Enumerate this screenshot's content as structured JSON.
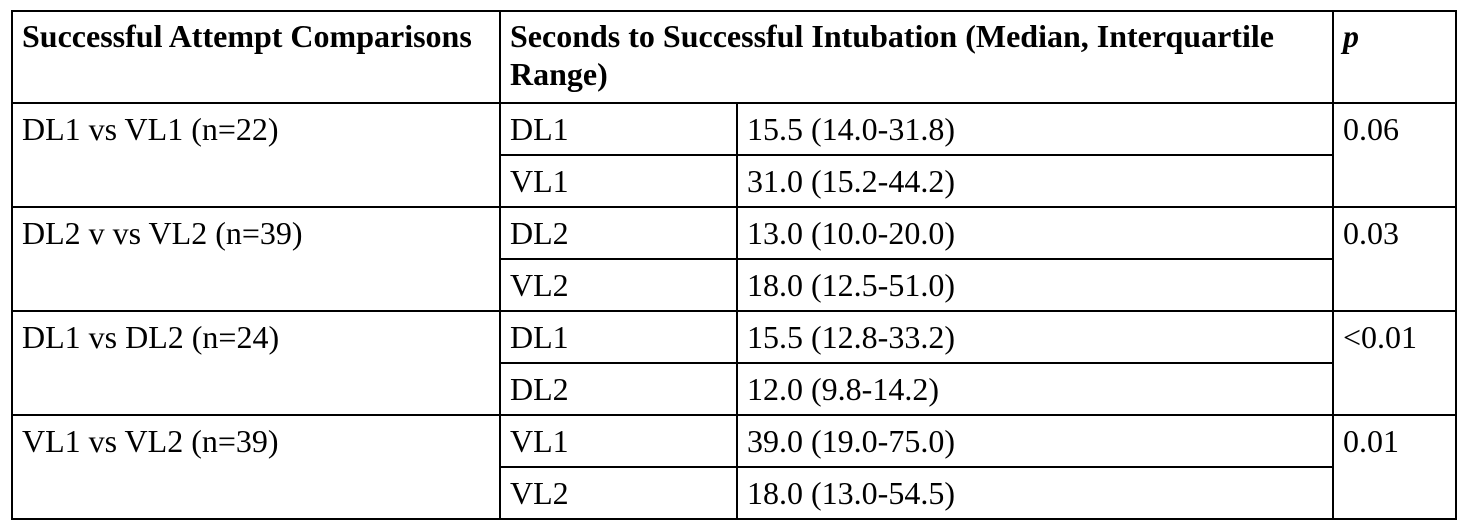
{
  "table": {
    "headers": {
      "comparison": "Successful Attempt Comparisons",
      "seconds": "Seconds to Successful Intubation (Median, Interquartile Range)",
      "p": "p"
    },
    "groups": [
      {
        "comparison": "DL1 vs VL1 (n=22)",
        "p": "0.06",
        "rows": [
          {
            "arm": "DL1",
            "value": "15.5 (14.0-31.8)"
          },
          {
            "arm": "VL1",
            "value": "31.0 (15.2-44.2)"
          }
        ]
      },
      {
        "comparison": "DL2 v vs VL2 (n=39)",
        "p": "0.03",
        "rows": [
          {
            "arm": "DL2",
            "value": "13.0 (10.0-20.0)"
          },
          {
            "arm": "VL2",
            "value": "18.0 (12.5-51.0)"
          }
        ]
      },
      {
        "comparison": "DL1 vs DL2 (n=24)",
        "p": "<0.01",
        "rows": [
          {
            "arm": "DL1",
            "value": "15.5 (12.8-33.2)"
          },
          {
            "arm": "DL2",
            "value": "12.0 (9.8-14.2)"
          }
        ]
      },
      {
        "comparison": "VL1 vs VL2 (n=39)",
        "p": "0.01",
        "rows": [
          {
            "arm": "VL1",
            "value": "39.0 (19.0-75.0)"
          },
          {
            "arm": "VL2",
            "value": "18.0 (13.0-54.5)"
          }
        ]
      }
    ]
  }
}
